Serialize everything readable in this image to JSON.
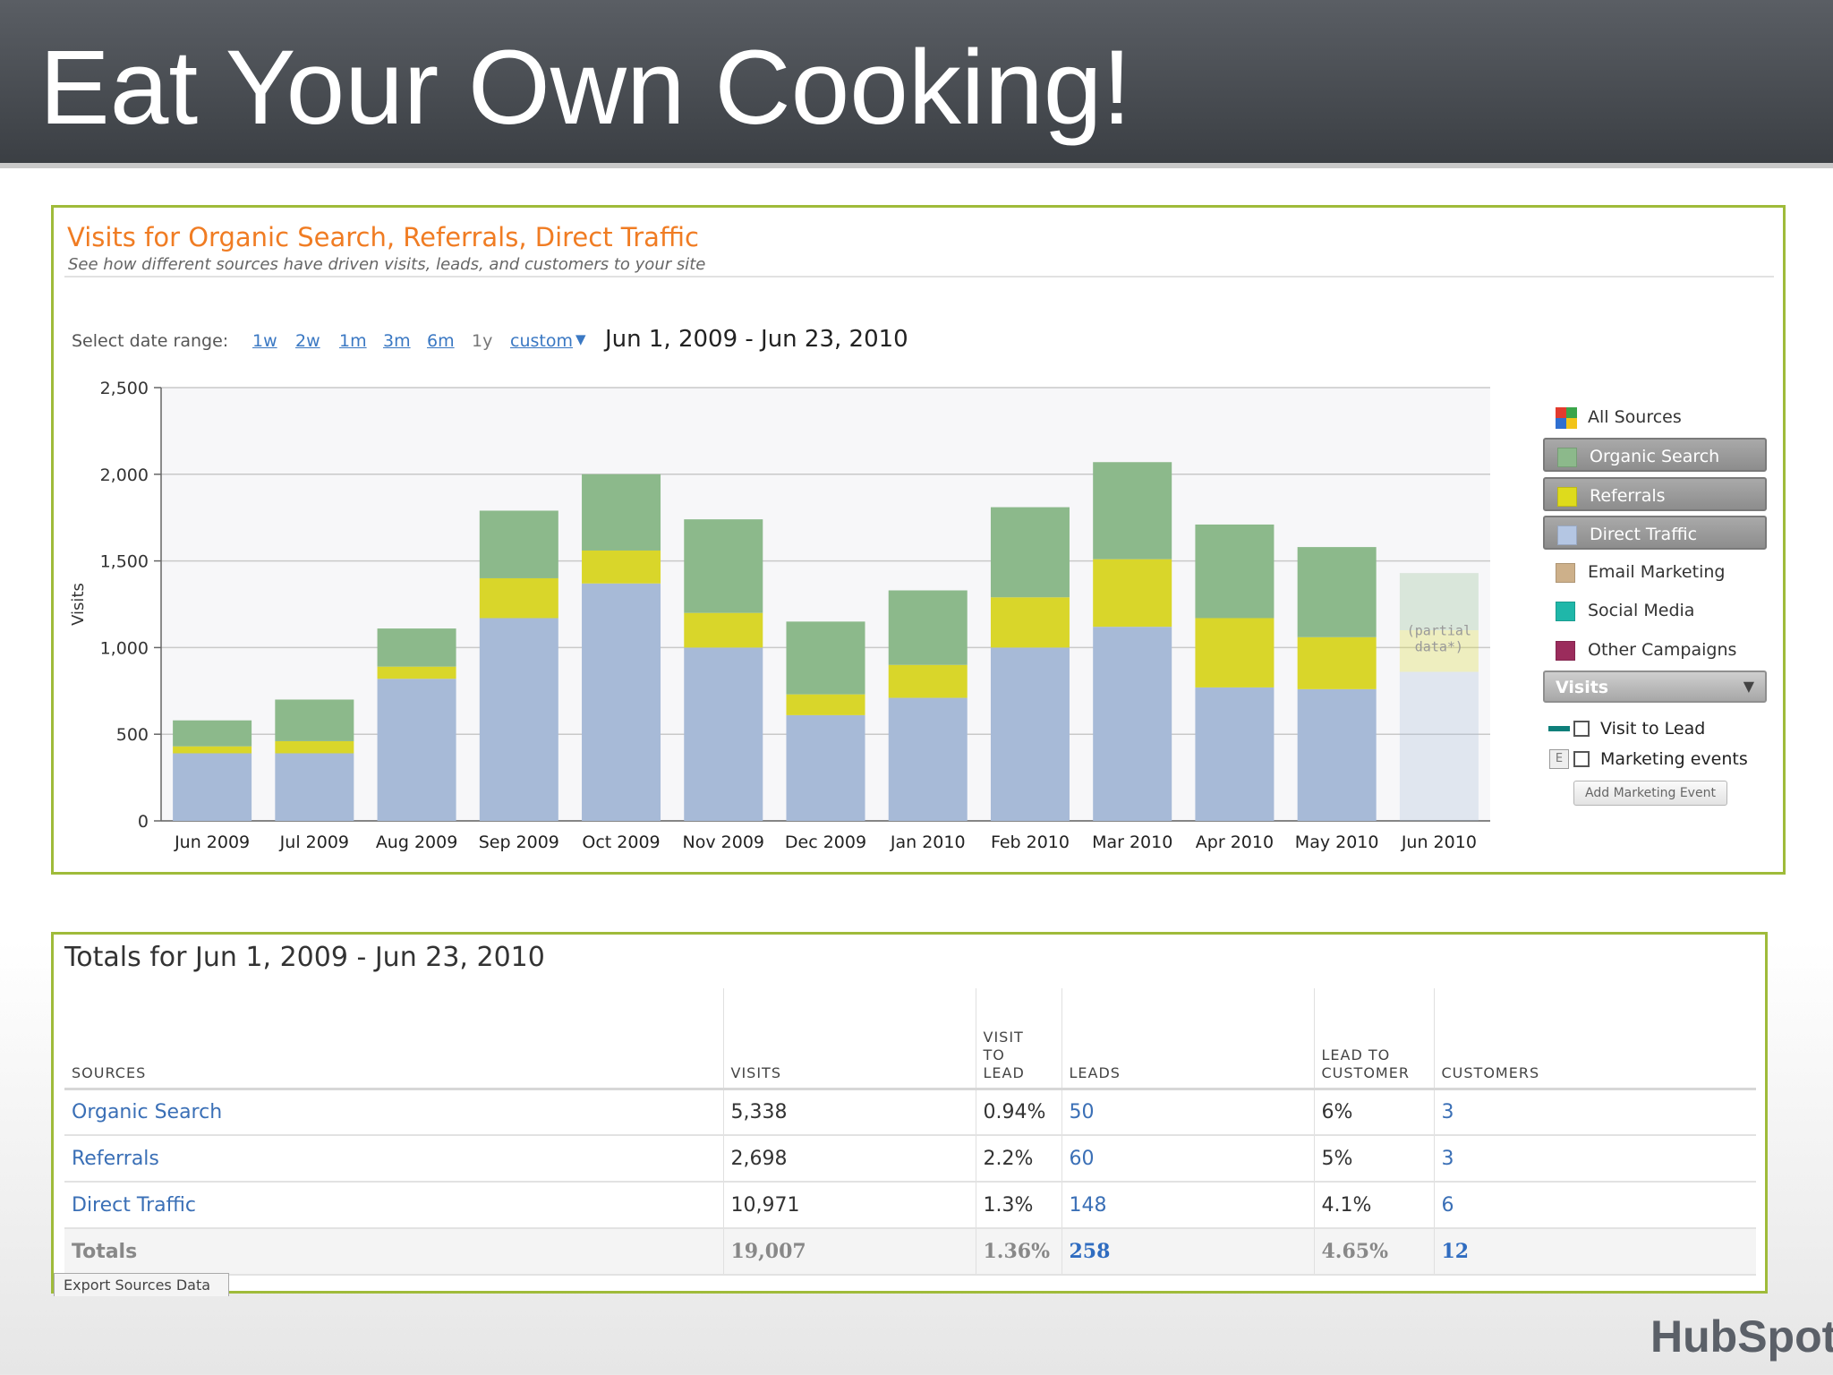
{
  "header": {
    "title": "Eat Your Own Cooking!"
  },
  "panel": {
    "title": "Visits for Organic Search, Referrals, Direct Traffic",
    "subtitle": "See how different sources have driven visits, leads, and customers to your site",
    "date_range": {
      "label": "Select date range:",
      "options": [
        "1w",
        "2w",
        "1m",
        "3m",
        "6m",
        "1y",
        "custom"
      ],
      "selected_text": "Jun 1, 2009 - Jun 23, 2010"
    }
  },
  "chart_data": {
    "type": "bar",
    "stacked": true,
    "ylabel": "Visits",
    "ylim": [
      0,
      2500
    ],
    "yticks": [
      "0",
      "500",
      "1,000",
      "1,500",
      "2,000",
      "2,500"
    ],
    "grid": true,
    "legend_position": "right",
    "categories": [
      "Jun 2009",
      "Jul 2009",
      "Aug 2009",
      "Sep 2009",
      "Oct 2009",
      "Nov 2009",
      "Dec 2009",
      "Jan 2010",
      "Feb 2010",
      "Mar 2010",
      "Apr 2010",
      "May 2010",
      "Jun 2010"
    ],
    "series": [
      {
        "name": "Direct Traffic",
        "color": "#a7bad7",
        "values": [
          390,
          390,
          820,
          1170,
          1370,
          1000,
          610,
          710,
          1000,
          1120,
          770,
          760,
          860
        ]
      },
      {
        "name": "Referrals",
        "color": "#d9d62a",
        "values": [
          40,
          70,
          70,
          230,
          190,
          200,
          120,
          190,
          290,
          390,
          400,
          300,
          240
        ]
      },
      {
        "name": "Organic Search",
        "color": "#8cb98b",
        "values": [
          150,
          240,
          220,
          390,
          440,
          540,
          420,
          430,
          520,
          560,
          540,
          520,
          330
        ]
      }
    ],
    "annotation": "(partial data*)"
  },
  "legend": {
    "all_sources": "All Sources",
    "items": [
      {
        "label": "Organic Search",
        "color": "#8cb98b",
        "active": true
      },
      {
        "label": "Referrals",
        "color": "#dedb1c",
        "active": true
      },
      {
        "label": "Direct Traffic",
        "color": "#b4c6e3",
        "active": true
      },
      {
        "label": "Email Marketing",
        "color": "#cdb08a",
        "active": false
      },
      {
        "label": "Social Media",
        "color": "#1fb7a9",
        "active": false
      },
      {
        "label": "Other Campaigns",
        "color": "#9b2c5c",
        "active": false
      }
    ],
    "metric": "Visits",
    "visit_to_lead": "Visit to Lead",
    "marketing_events": "Marketing events",
    "e_icon": "E",
    "add_event": "Add Marketing Event"
  },
  "totals": {
    "title": "Totals for Jun 1, 2009 - Jun 23, 2010",
    "columns": [
      "SOURCES",
      "VISITS",
      "VISIT TO LEAD",
      "LEADS",
      "LEAD TO CUSTOMER",
      "CUSTOMERS"
    ],
    "rows": [
      {
        "source": "Organic Search",
        "visits": "5,338",
        "v2l": "0.94%",
        "leads": "50",
        "l2c": "6%",
        "customers": "3"
      },
      {
        "source": "Referrals",
        "visits": "2,698",
        "v2l": "2.2%",
        "leads": "60",
        "l2c": "5%",
        "customers": "3"
      },
      {
        "source": "Direct Traffic",
        "visits": "10,971",
        "v2l": "1.3%",
        "leads": "148",
        "l2c": "4.1%",
        "customers": "6"
      }
    ],
    "total": {
      "source": "Totals",
      "visits": "19,007",
      "v2l": "1.36%",
      "leads": "258",
      "l2c": "4.65%",
      "customers": "12"
    },
    "export": "Export Sources Data"
  },
  "logo": {
    "text": "HubSpot"
  }
}
